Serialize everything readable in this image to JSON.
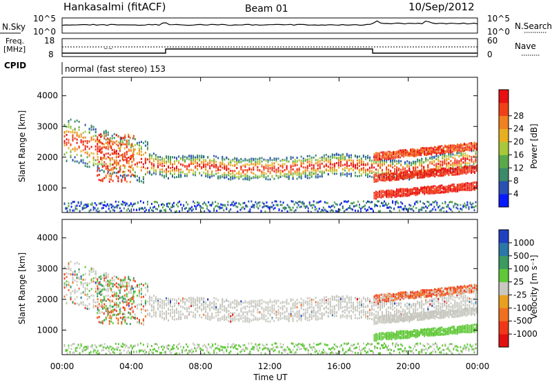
{
  "header": {
    "station": "Hankasalmi (fitACF)",
    "beam": "Beam 01",
    "date": "10/Sep/2012"
  },
  "noise_panel": {
    "left_label": "N.Sky",
    "right_label": "N.Search",
    "left_ticks": [
      "10^5",
      "10^0"
    ],
    "right_ticks": [
      "10^5",
      "10^0"
    ]
  },
  "freq_panel": {
    "left_label_line1": "Freq.",
    "left_label_line2": "[MHz]",
    "right_label": "Nave",
    "left_ticks": [
      "18",
      "8"
    ],
    "right_ticks": [
      "60",
      "0"
    ]
  },
  "cpid": {
    "label": "CPID",
    "mode_text": "normal (fast stereo) 153"
  },
  "power_panel": {
    "ylabel": "Slant Range [km]",
    "yticks": [
      "1000",
      "2000",
      "3000",
      "4000"
    ],
    "colorbar_label": "Power [dB]",
    "colorbar_ticks": [
      "4",
      "8",
      "12",
      "16",
      "20",
      "24",
      "28"
    ],
    "colorbar_colors": [
      "#0a1aff",
      "#2a50b0",
      "#3c8a6a",
      "#5aa84a",
      "#a8c83a",
      "#e8b020",
      "#f08020",
      "#f04018",
      "#e81010"
    ]
  },
  "velocity_panel": {
    "ylabel": "Slant Range [km]",
    "yticks": [
      "1000",
      "2000",
      "3000",
      "4000"
    ],
    "colorbar_label": "Velocity [m s⁻¹]",
    "colorbar_ticks": [
      "1000",
      "500",
      "100",
      "25",
      "-25",
      "-100",
      "-500",
      "-1000"
    ],
    "colorbar_colors": [
      "#2040c0",
      "#2a78a8",
      "#3a9a60",
      "#60c838",
      "#c8c8c0",
      "#e8a020",
      "#f07020",
      "#f03818",
      "#e01010"
    ]
  },
  "time_axis": {
    "label": "Time UT",
    "ticks": [
      "00:00",
      "04:00",
      "08:00",
      "12:00",
      "16:00",
      "20:00",
      "00:00"
    ]
  },
  "chart_data": {
    "type": "heatmap",
    "x_unit": "hours UT",
    "xlim": [
      0,
      24
    ],
    "ylim_km": [
      200,
      4600
    ],
    "power_band_centers": [
      {
        "t": 0.5,
        "range_km": 2600
      },
      {
        "t": 2.5,
        "range_km": 2200
      },
      {
        "t": 4.5,
        "range_km": 1900
      },
      {
        "t": 6,
        "range_km": 1700
      },
      {
        "t": 8,
        "range_km": 1750
      },
      {
        "t": 10,
        "range_km": 1650
      },
      {
        "t": 12,
        "range_km": 1650
      },
      {
        "t": 14,
        "range_km": 1700
      },
      {
        "t": 16,
        "range_km": 1800
      },
      {
        "t": 18,
        "range_km": 1700
      },
      {
        "t": 20,
        "range_km": 1600
      },
      {
        "t": 22,
        "range_km": 1850
      },
      {
        "t": 24,
        "range_km": 2000
      }
    ],
    "secondary_bands_after_18UT": [
      {
        "t_start": 18,
        "t_end": 24,
        "range_start_km": 800,
        "range_end_km": 1100
      },
      {
        "t_start": 18,
        "t_end": 24,
        "range_start_km": 1350,
        "range_end_km": 1650
      },
      {
        "t_start": 18,
        "t_end": 24,
        "range_start_km": 2050,
        "range_end_km": 2400
      }
    ]
  }
}
